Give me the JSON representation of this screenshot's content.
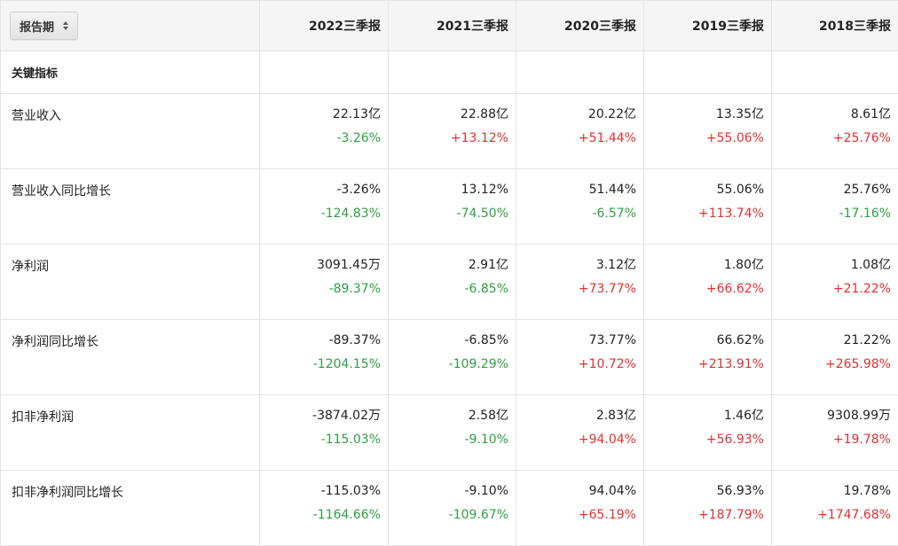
{
  "header": {
    "period_label": "报告期",
    "periods": [
      "2022三季报",
      "2021三季报",
      "2020三季报",
      "2019三季报",
      "2018三季报"
    ]
  },
  "section": {
    "title": "关键指标"
  },
  "colors": {
    "negative": "#2f9e44",
    "positive": "#e03131"
  },
  "rows": [
    {
      "name": "营业收入",
      "cells": [
        {
          "value": "22.13亿",
          "change": "-3.26%"
        },
        {
          "value": "22.88亿",
          "change": "+13.12%"
        },
        {
          "value": "20.22亿",
          "change": "+51.44%"
        },
        {
          "value": "13.35亿",
          "change": "+55.06%"
        },
        {
          "value": "8.61亿",
          "change": "+25.76%"
        }
      ]
    },
    {
      "name": "营业收入同比增长",
      "cells": [
        {
          "value": "-3.26%",
          "change": "-124.83%"
        },
        {
          "value": "13.12%",
          "change": "-74.50%"
        },
        {
          "value": "51.44%",
          "change": "-6.57%"
        },
        {
          "value": "55.06%",
          "change": "+113.74%"
        },
        {
          "value": "25.76%",
          "change": "-17.16%"
        }
      ]
    },
    {
      "name": "净利润",
      "cells": [
        {
          "value": "3091.45万",
          "change": "-89.37%"
        },
        {
          "value": "2.91亿",
          "change": "-6.85%"
        },
        {
          "value": "3.12亿",
          "change": "+73.77%"
        },
        {
          "value": "1.80亿",
          "change": "+66.62%"
        },
        {
          "value": "1.08亿",
          "change": "+21.22%"
        }
      ]
    },
    {
      "name": "净利润同比增长",
      "cells": [
        {
          "value": "-89.37%",
          "change": "-1204.15%"
        },
        {
          "value": "-6.85%",
          "change": "-109.29%"
        },
        {
          "value": "73.77%",
          "change": "+10.72%"
        },
        {
          "value": "66.62%",
          "change": "+213.91%"
        },
        {
          "value": "21.22%",
          "change": "+265.98%"
        }
      ]
    },
    {
      "name": "扣非净利润",
      "cells": [
        {
          "value": "-3874.02万",
          "change": "-115.03%"
        },
        {
          "value": "2.58亿",
          "change": "-9.10%"
        },
        {
          "value": "2.83亿",
          "change": "+94.04%"
        },
        {
          "value": "1.46亿",
          "change": "+56.93%"
        },
        {
          "value": "9308.99万",
          "change": "+19.78%"
        }
      ]
    },
    {
      "name": "扣非净利润同比增长",
      "cells": [
        {
          "value": "-115.03%",
          "change": "-1164.66%"
        },
        {
          "value": "-9.10%",
          "change": "-109.67%"
        },
        {
          "value": "94.04%",
          "change": "+65.19%"
        },
        {
          "value": "56.93%",
          "change": "+187.79%"
        },
        {
          "value": "19.78%",
          "change": "+1747.68%"
        }
      ]
    }
  ]
}
